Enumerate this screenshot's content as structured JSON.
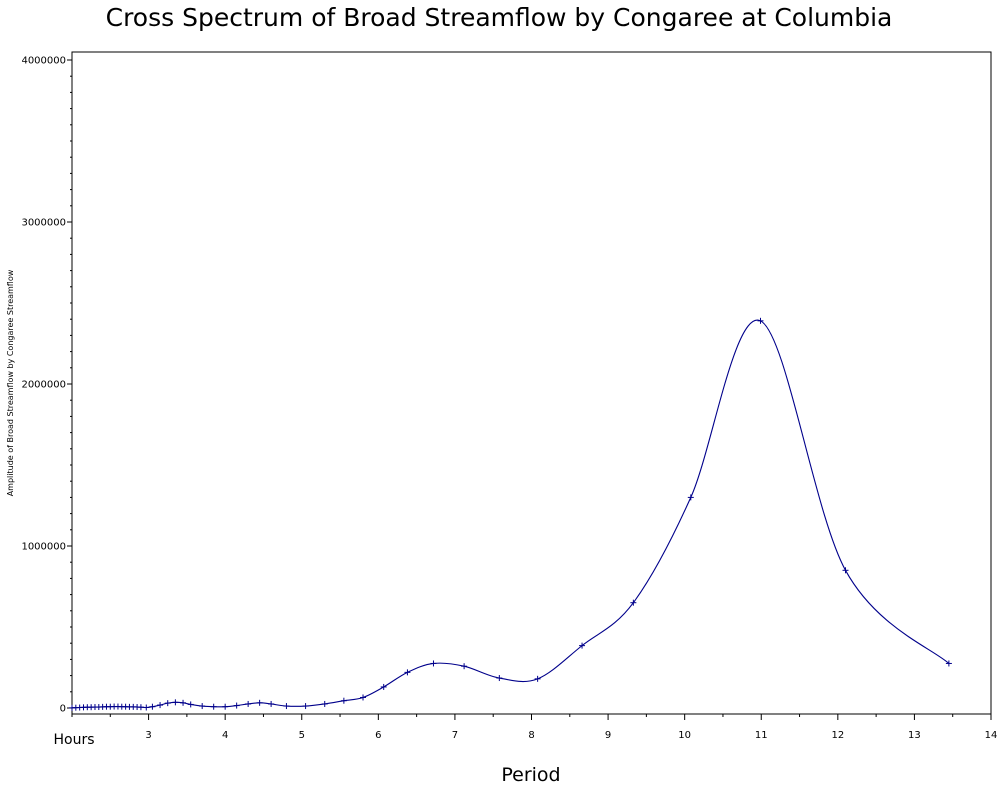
{
  "chart_data": {
    "type": "line",
    "title": "Cross Spectrum of Broad Streamflow by Congaree at Columbia",
    "xlabel": "Period",
    "ylabel": "Amplitude of Broad Streamflow by Congaree Streamflow",
    "x_unit_label": "Hours",
    "xlim": [
      2,
      14
    ],
    "ylim": [
      0,
      4000000
    ],
    "x_ticks": [
      3,
      4,
      5,
      6,
      7,
      8,
      9,
      10,
      11,
      12,
      13,
      14
    ],
    "y_ticks": [
      0,
      1000000,
      2000000,
      3000000,
      4000000
    ],
    "y_tick_labels": [
      "0",
      "1000000",
      "2000000",
      "3000000",
      "4000000"
    ],
    "color": "#00008B",
    "series": [
      {
        "name": "Amplitude",
        "x": [
          2.0,
          2.05,
          2.1,
          2.15,
          2.2,
          2.25,
          2.3,
          2.35,
          2.4,
          2.45,
          2.5,
          2.55,
          2.6,
          2.65,
          2.7,
          2.75,
          2.8,
          2.85,
          2.9,
          2.97,
          3.05,
          3.15,
          3.25,
          3.35,
          3.45,
          3.55,
          3.7,
          3.85,
          4.0,
          4.15,
          4.3,
          4.45,
          4.6,
          4.8,
          5.05,
          5.3,
          5.55,
          5.8,
          6.07,
          6.38,
          6.72,
          7.12,
          7.58,
          8.08,
          8.66,
          9.33,
          10.08,
          10.99,
          12.1,
          13.45
        ],
        "values": [
          1000,
          2000,
          3000,
          4000,
          5000,
          5000,
          6000,
          6000,
          7000,
          8000,
          8000,
          9000,
          9000,
          8000,
          8000,
          7000,
          7000,
          6000,
          5000,
          3000,
          8000,
          18000,
          30000,
          35000,
          32000,
          22000,
          12000,
          8000,
          8000,
          15000,
          25000,
          32000,
          25000,
          12000,
          12000,
          25000,
          45000,
          65000,
          130000,
          220000,
          275000,
          258000,
          185000,
          180000,
          385000,
          650000,
          1300000,
          2390000,
          850000,
          275000
        ]
      }
    ]
  }
}
